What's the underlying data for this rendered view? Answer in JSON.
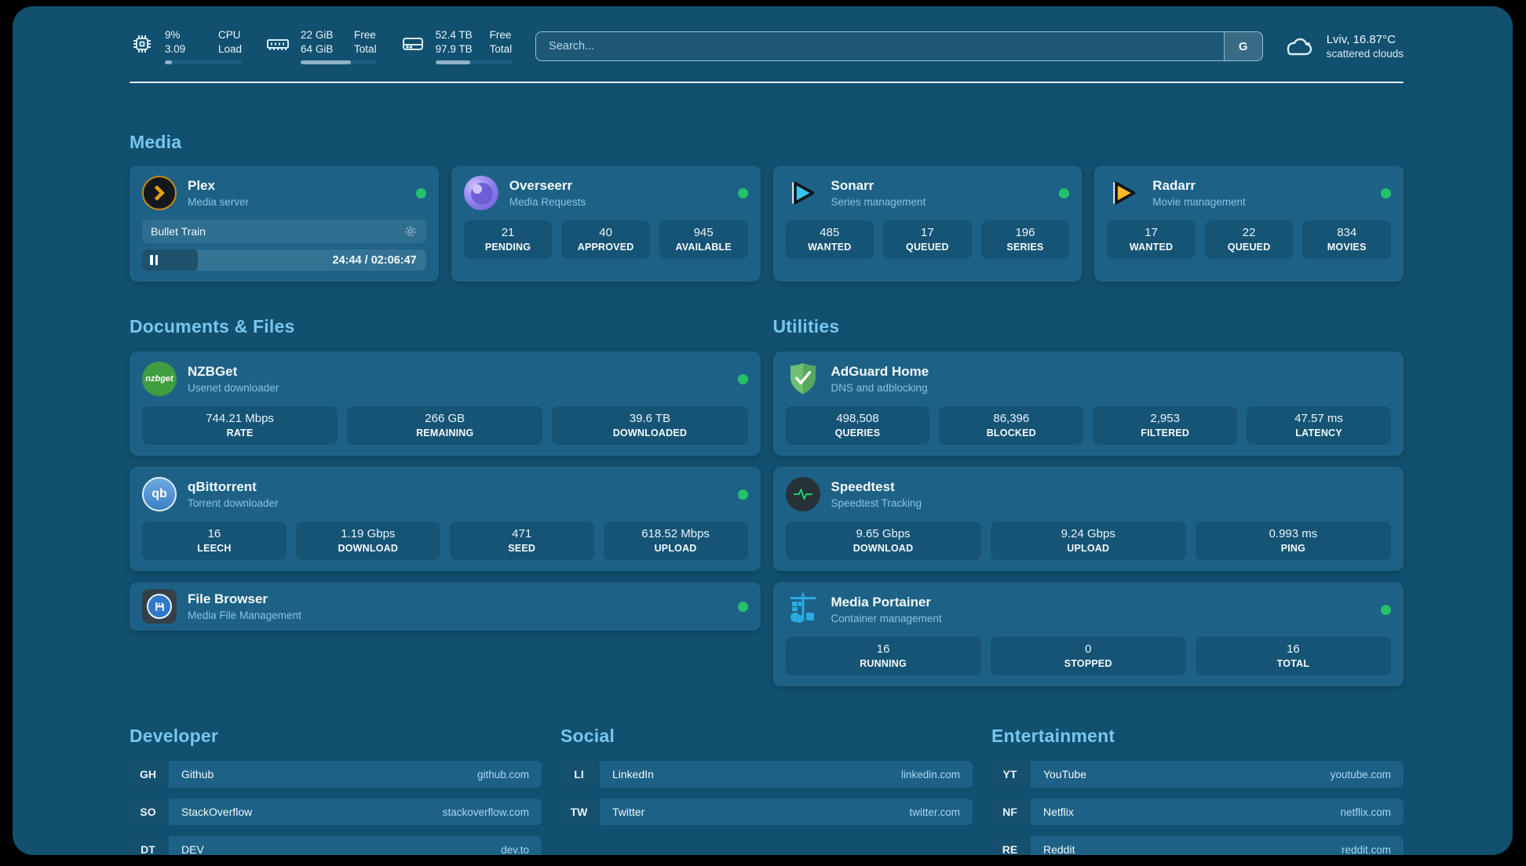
{
  "colors": {
    "background": "#11506F",
    "card": "#1D6286",
    "accent_heading": "#79C6EF",
    "status_green": "#25C168"
  },
  "header": {
    "stats": {
      "cpu": {
        "line1": "9%",
        "line2": "3.09",
        "label1": "CPU",
        "label2": "Load",
        "progress_pct": 9
      },
      "memory": {
        "line1": "22 GiB",
        "line2": "64 GiB",
        "label1": "Free",
        "label2": "Total",
        "progress_pct": 66
      },
      "disk": {
        "line1": "52.4 TB",
        "line2": "97.9 TB",
        "label1": "Free",
        "label2": "Total",
        "progress_pct": 46
      }
    },
    "search": {
      "placeholder": "Search...",
      "engine_button": "G"
    },
    "weather": {
      "location_temp": "Lviv, 16.87°C",
      "condition": "scattered clouds"
    }
  },
  "sections": {
    "media": {
      "title": "Media",
      "plex": {
        "name": "Plex",
        "description": "Media server",
        "now_playing": {
          "title": "Bullet Train",
          "time": "24:44 / 02:06:47",
          "progress_pct": 19.5
        }
      },
      "overseerr": {
        "name": "Overseerr",
        "description": "Media Requests",
        "stats": [
          {
            "value": "21",
            "label": "PENDING"
          },
          {
            "value": "40",
            "label": "APPROVED"
          },
          {
            "value": "945",
            "label": "AVAILABLE"
          }
        ]
      },
      "sonarr": {
        "name": "Sonarr",
        "description": "Series management",
        "stats": [
          {
            "value": "485",
            "label": "WANTED"
          },
          {
            "value": "17",
            "label": "QUEUED"
          },
          {
            "value": "196",
            "label": "SERIES"
          }
        ]
      },
      "radarr": {
        "name": "Radarr",
        "description": "Movie management",
        "stats": [
          {
            "value": "17",
            "label": "WANTED"
          },
          {
            "value": "22",
            "label": "QUEUED"
          },
          {
            "value": "834",
            "label": "MOVIES"
          }
        ]
      }
    },
    "documents": {
      "title": "Documents & Files",
      "nzbget": {
        "name": "NZBGet",
        "description": "Usenet downloader",
        "logo_text": "nzbget",
        "stats": [
          {
            "value": "744.21 Mbps",
            "label": "RATE"
          },
          {
            "value": "266 GB",
            "label": "REMAINING"
          },
          {
            "value": "39.6 TB",
            "label": "DOWNLOADED"
          }
        ]
      },
      "qbittorrent": {
        "name": "qBittorrent",
        "description": "Torrent downloader",
        "logo_text": "qb",
        "stats": [
          {
            "value": "16",
            "label": "LEECH"
          },
          {
            "value": "1.19 Gbps",
            "label": "DOWNLOAD"
          },
          {
            "value": "471",
            "label": "SEED"
          },
          {
            "value": "618.52 Mbps",
            "label": "UPLOAD"
          }
        ]
      },
      "filebrowser": {
        "name": "File Browser",
        "description": "Media File Management"
      }
    },
    "utilities": {
      "title": "Utilities",
      "adguard": {
        "name": "AdGuard Home",
        "description": "DNS and adblocking",
        "stats": [
          {
            "value": "498,508",
            "label": "QUERIES"
          },
          {
            "value": "86,396",
            "label": "BLOCKED"
          },
          {
            "value": "2,953",
            "label": "FILTERED"
          },
          {
            "value": "47.57 ms",
            "label": "LATENCY"
          }
        ]
      },
      "speedtest": {
        "name": "Speedtest",
        "description": "Speedtest Tracking",
        "stats": [
          {
            "value": "9.65 Gbps",
            "label": "DOWNLOAD"
          },
          {
            "value": "9.24 Gbps",
            "label": "UPLOAD"
          },
          {
            "value": "0.993 ms",
            "label": "PING"
          }
        ]
      },
      "portainer": {
        "name": "Media Portainer",
        "description": "Container management",
        "stats": [
          {
            "value": "16",
            "label": "RUNNING"
          },
          {
            "value": "0",
            "label": "STOPPED"
          },
          {
            "value": "16",
            "label": "TOTAL"
          }
        ]
      }
    },
    "links": {
      "developer": {
        "title": "Developer",
        "items": [
          {
            "tag": "GH",
            "name": "Github",
            "url": "github.com"
          },
          {
            "tag": "SO",
            "name": "StackOverflow",
            "url": "stackoverflow.com"
          },
          {
            "tag": "DT",
            "name": "DEV",
            "url": "dev.to"
          }
        ]
      },
      "social": {
        "title": "Social",
        "items": [
          {
            "tag": "LI",
            "name": "LinkedIn",
            "url": "linkedin.com"
          },
          {
            "tag": "TW",
            "name": "Twitter",
            "url": "twitter.com"
          }
        ]
      },
      "entertainment": {
        "title": "Entertainment",
        "items": [
          {
            "tag": "YT",
            "name": "YouTube",
            "url": "youtube.com"
          },
          {
            "tag": "NF",
            "name": "Netflix",
            "url": "netflix.com"
          },
          {
            "tag": "RE",
            "name": "Reddit",
            "url": "reddit.com"
          }
        ]
      }
    }
  }
}
